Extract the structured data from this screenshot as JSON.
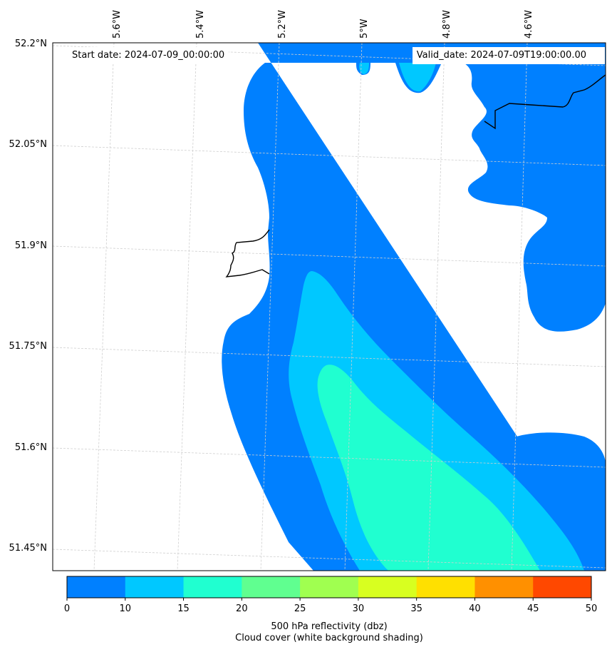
{
  "header": {
    "start_date": "Start date: 2024-07-09_00:00:00",
    "valid_date": "Valid_date: 2024-07-09T19:00:00.00"
  },
  "map": {
    "lat_labels": [
      "52.2°N",
      "52.05°N",
      "51.9°N",
      "51.75°N",
      "51.6°N",
      "51.45°N"
    ],
    "lon_labels": [
      "5.6°W",
      "5.4°W",
      "5.2°W",
      "5°W",
      "4.8°W",
      "4.6°W"
    ],
    "background_color": "#ffffff",
    "coastline_color": "#000000",
    "grid": true
  },
  "colorbar": {
    "ticks": [
      "0",
      "10",
      "15",
      "20",
      "25",
      "30",
      "35",
      "40",
      "45",
      "50"
    ],
    "colors": [
      "#0080ff",
      "#00c8ff",
      "#20ffd0",
      "#60ff90",
      "#a0ff50",
      "#d8ff20",
      "#ffe000",
      "#ff9000",
      "#ff4800"
    ],
    "label_line1": "500 hPa reflectivity (dbz)",
    "label_line2": "Cloud cover (white background shading)"
  }
}
